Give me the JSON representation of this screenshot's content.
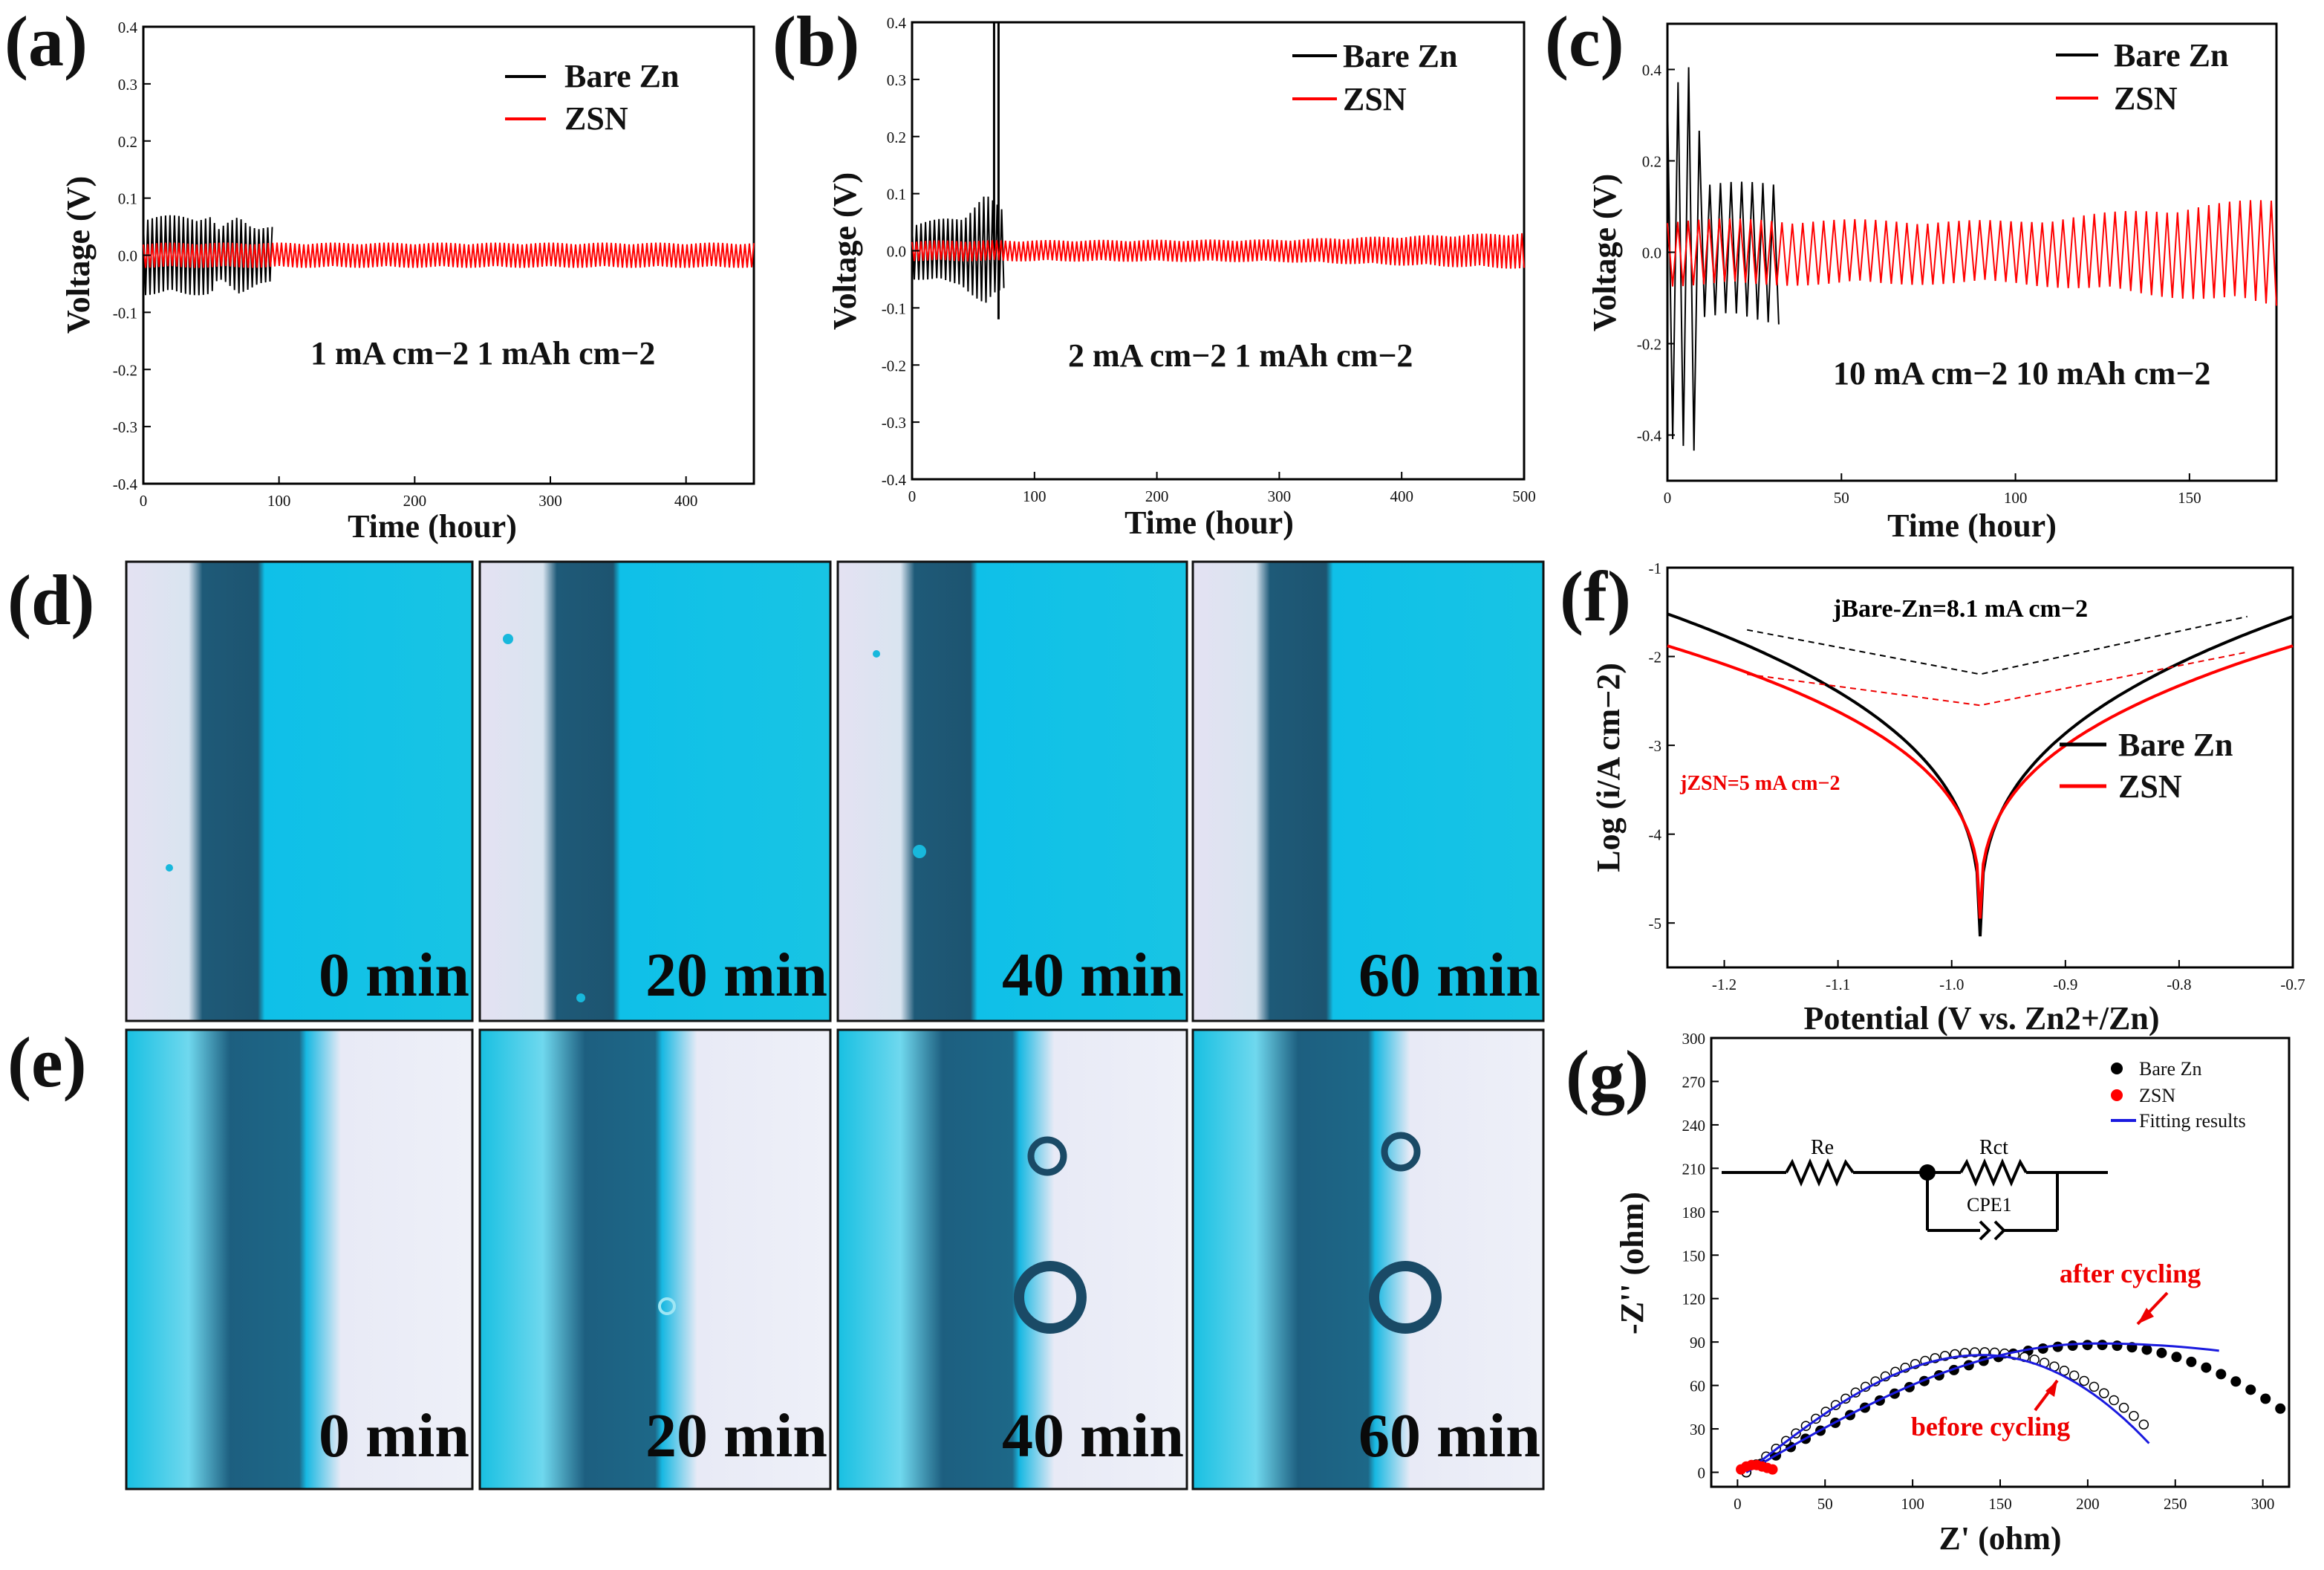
{
  "panel_labels": [
    "(a)",
    "(b)",
    "(c)",
    "(d)",
    "(e)",
    "(f)",
    "(g)"
  ],
  "micro_times": [
    "0 min",
    "20 min",
    "40 min",
    "60 min"
  ],
  "colors": {
    "bare": "#000000",
    "zsn": "#ff0000",
    "fit": "#1a1adf",
    "cyan": "#1cc6e6",
    "dark": "#1e4e66"
  },
  "chart_data": [
    {
      "id": "a",
      "type": "line",
      "xlabel": "Time (hour)",
      "ylabel": "Voltage (V)",
      "xlim": [
        0,
        450
      ],
      "ylim": [
        -0.4,
        0.4
      ],
      "xticks": [
        0,
        100,
        200,
        300,
        400
      ],
      "yticks": [
        -0.4,
        -0.3,
        -0.2,
        -0.1,
        0.0,
        0.1,
        0.2,
        0.3,
        0.4
      ],
      "legend": [
        "Bare Zn",
        "ZSN"
      ],
      "annotation": "1 mA cm−2 1 mAh cm−2",
      "series": [
        {
          "name": "Bare Zn",
          "t_end": 95,
          "amp": [
            [
              0,
              0.07
            ],
            [
              50,
              0.07
            ],
            [
              55,
              0.045
            ],
            [
              70,
              0.07
            ],
            [
              85,
              0.05
            ],
            [
              95,
              0.05
            ]
          ]
        },
        {
          "name": "ZSN",
          "t_end": 450,
          "amp": [
            [
              0,
              0.022
            ],
            [
              450,
              0.022
            ]
          ]
        }
      ]
    },
    {
      "id": "b",
      "type": "line",
      "xlabel": "Time (hour)",
      "ylabel": "Voltage (V)",
      "xlim": [
        0,
        500
      ],
      "ylim": [
        -0.4,
        0.4
      ],
      "xticks": [
        0,
        100,
        200,
        300,
        400,
        500
      ],
      "yticks": [
        -0.4,
        -0.3,
        -0.2,
        -0.1,
        0.0,
        0.1,
        0.2,
        0.3,
        0.4
      ],
      "legend": [
        "Bare Zn",
        "ZSN"
      ],
      "annotation": "2 mA cm−2 1 mAh cm−2",
      "series": [
        {
          "name": "Bare Zn",
          "t_end": 75,
          "amp": [
            [
              0,
              0.05
            ],
            [
              40,
              0.06
            ],
            [
              60,
              0.1
            ],
            [
              75,
              0.07
            ]
          ],
          "spike": {
            "t": 67,
            "v": 0.4
          }
        },
        {
          "name": "ZSN",
          "t_end": 500,
          "amp": [
            [
              0,
              0.018
            ],
            [
              300,
              0.02
            ],
            [
              500,
              0.032
            ]
          ]
        }
      ]
    },
    {
      "id": "c",
      "type": "line",
      "xlabel": "Time (hour)",
      "ylabel": "Voltage (V)",
      "xlim": [
        0,
        175
      ],
      "ylim": [
        -0.5,
        0.5
      ],
      "xticks": [
        0,
        50,
        100,
        150
      ],
      "yticks": [
        -0.4,
        -0.2,
        0.0,
        0.2,
        0.4
      ],
      "legend": [
        "Bare Zn",
        "ZSN"
      ],
      "annotation": "10 mA cm−2 10 mAh cm−2",
      "series": [
        {
          "name": "Bare Zn",
          "t_end": 32,
          "amp": [
            [
              0,
              0.4
            ],
            [
              8,
              0.45
            ],
            [
              10,
              0.15
            ],
            [
              32,
              0.16
            ]
          ]
        },
        {
          "name": "ZSN",
          "t_end": 175,
          "amp": [
            [
              0,
              0.075
            ],
            [
              100,
              0.07
            ],
            [
              175,
              0.12
            ]
          ]
        }
      ]
    },
    {
      "id": "f",
      "type": "line",
      "xlabel": "Potential (V vs. Zn2+/Zn)",
      "ylabel": "Log (i/A cm−2)",
      "xlim": [
        -1.25,
        -0.7
      ],
      "ylim": [
        -5.5,
        -1.0
      ],
      "xticks": [
        -1.2,
        -1.1,
        -1.0,
        -0.9,
        -0.8,
        -0.7
      ],
      "yticks": [
        -1,
        -2,
        -3,
        -4,
        -5
      ],
      "legend": [
        "Bare Zn",
        "ZSN"
      ],
      "annotations": {
        "bare": "jBare-Zn=8.1 mA cm−2",
        "zsn": "jZSN=5 mA cm−2"
      },
      "series": [
        {
          "name": "Bare Zn",
          "e_corr": -0.975,
          "i_min": -5.15,
          "left_end": -1.52,
          "right_end": -1.55
        },
        {
          "name": "ZSN",
          "e_corr": -0.975,
          "i_min": -4.95,
          "left_end": -1.88,
          "right_end": -1.88
        }
      ]
    },
    {
      "id": "g",
      "type": "scatter",
      "xlabel": "Z' (ohm)",
      "ylabel": "-Z'' (ohm)",
      "xlim": [
        -15,
        315
      ],
      "ylim": [
        -10,
        300
      ],
      "xticks": [
        0,
        50,
        100,
        150,
        200,
        250,
        300
      ],
      "yticks": [
        0,
        30,
        60,
        90,
        120,
        150,
        180,
        210,
        240,
        270,
        300
      ],
      "legend": [
        "Bare Zn",
        "ZSN",
        "Fitting results"
      ],
      "annotations": {
        "after": "after cycling",
        "before": "before cycling"
      },
      "circuit": {
        "re": "Re",
        "rct": "Rct",
        "cpe": "CPE1"
      },
      "series": [
        {
          "name": "Bare Zn after cycling",
          "x0": 5,
          "peak_x": 205,
          "peak_y": 88,
          "x_end": 310,
          "y_end": 44
        },
        {
          "name": "Bare Zn before cycling",
          "x0": 5,
          "peak_x": 140,
          "peak_y": 83,
          "x_end": 232,
          "y_end": 33
        },
        {
          "name": "ZSN",
          "x": [
            2,
            5,
            8,
            11,
            14,
            17,
            20
          ],
          "y": [
            2,
            4,
            5,
            5,
            4,
            3,
            2
          ]
        }
      ]
    }
  ]
}
